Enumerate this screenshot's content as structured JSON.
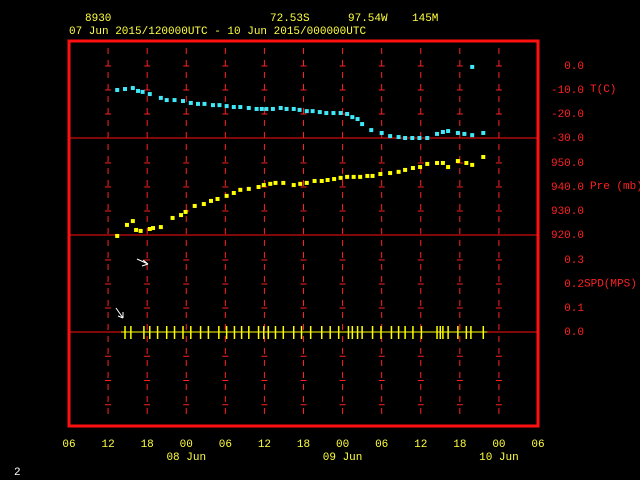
{
  "header": {
    "station": "8930",
    "lat": "72.53S",
    "lon": "97.54W",
    "elev": "145M",
    "period": "07 Jun 2015/120000UTC - 10 Jun 2015/000000UTC",
    "page": "2"
  },
  "x_axis": {
    "xlim": [
      6,
      78
    ],
    "xticks": [
      {
        "value": 6,
        "label": "06"
      },
      {
        "value": 12,
        "label": "12"
      },
      {
        "value": 18,
        "label": "18"
      },
      {
        "value": 24,
        "label": "00"
      },
      {
        "value": 30,
        "label": "06"
      },
      {
        "value": 36,
        "label": "12"
      },
      {
        "value": 42,
        "label": "18"
      },
      {
        "value": 48,
        "label": "00"
      },
      {
        "value": 54,
        "label": "06"
      },
      {
        "value": 60,
        "label": "12"
      },
      {
        "value": 66,
        "label": "18"
      },
      {
        "value": 72,
        "label": "00"
      },
      {
        "value": 78,
        "label": "06"
      }
    ],
    "dates": [
      {
        "value": 24,
        "label": "08 Jun"
      },
      {
        "value": 48,
        "label": "09 Jun"
      },
      {
        "value": 72,
        "label": "10 Jun"
      }
    ]
  },
  "chart_data": [
    {
      "type": "scatter",
      "label": "T(C)",
      "color": "#40e8f8",
      "x": [
        13.4,
        14.6,
        15.8,
        16.6,
        17.3,
        18.4,
        20.1,
        21.0,
        22.2,
        23.5,
        24.7,
        25.8,
        26.8,
        28.1,
        29.1,
        30.2,
        31.3,
        32.3,
        33.6,
        34.8,
        35.6,
        36.3,
        37.3,
        38.5,
        39.4,
        40.5,
        41.4,
        42.5,
        43.4,
        44.5,
        45.5,
        46.6,
        47.7,
        48.7,
        49.5,
        50.3,
        51.0,
        52.4,
        54.0,
        55.3,
        56.6,
        57.6,
        58.7,
        59.8,
        61.0,
        62.5,
        63.4,
        64.2,
        65.7,
        66.7,
        67.9,
        69.6,
        67.9
      ],
      "values": [
        -10.0,
        -9.6,
        -9.2,
        -10.4,
        -10.8,
        -11.7,
        -13.3,
        -14.2,
        -14.2,
        -14.6,
        -15.4,
        -15.8,
        -15.8,
        -16.3,
        -16.3,
        -16.7,
        -17.1,
        -17.1,
        -17.5,
        -17.9,
        -17.9,
        -17.9,
        -17.9,
        -17.5,
        -17.9,
        -17.9,
        -18.3,
        -18.8,
        -18.8,
        -19.2,
        -19.6,
        -19.6,
        -19.6,
        -20.0,
        -21.3,
        -22.1,
        -24.2,
        -26.7,
        -27.9,
        -29.2,
        -29.6,
        -30.0,
        -30.0,
        -30.0,
        -30.0,
        -28.3,
        -27.5,
        -27.1,
        -27.9,
        -28.3,
        -28.8,
        -27.9,
        -0.4
      ],
      "ylim": [
        -30,
        10.4
      ],
      "yticks": [
        {
          "value": 0,
          "label": "0.0"
        },
        {
          "value": -10,
          "label": "-10.0"
        },
        {
          "value": -20,
          "label": "-20.0"
        },
        {
          "value": -30,
          "label": "-30.0"
        }
      ]
    },
    {
      "type": "scatter",
      "label": "Pre (mb)",
      "color": "#ffff00",
      "x": [
        13.4,
        14.9,
        15.8,
        16.3,
        17.0,
        18.4,
        18.9,
        20.1,
        21.9,
        23.2,
        23.9,
        25.3,
        26.7,
        27.8,
        28.8,
        30.2,
        31.3,
        32.3,
        33.6,
        35.1,
        35.9,
        36.9,
        37.7,
        38.9,
        40.5,
        41.5,
        42.5,
        43.7,
        44.8,
        45.7,
        46.7,
        47.7,
        48.7,
        49.7,
        50.7,
        51.8,
        52.6,
        53.8,
        55.3,
        56.6,
        57.6,
        58.8,
        59.9,
        61.0,
        62.5,
        63.4,
        64.2,
        65.7,
        67.0,
        67.9,
        69.6
      ],
      "values": [
        919.6,
        924.2,
        925.8,
        922.1,
        921.7,
        922.5,
        922.9,
        923.3,
        927.1,
        928.3,
        929.6,
        932.1,
        932.9,
        934.2,
        935.0,
        936.3,
        937.5,
        938.8,
        939.2,
        940.0,
        940.8,
        941.3,
        941.7,
        941.7,
        940.8,
        941.3,
        941.7,
        942.5,
        942.5,
        942.9,
        943.3,
        943.8,
        944.2,
        944.2,
        944.2,
        944.6,
        944.6,
        945.4,
        945.8,
        946.3,
        947.1,
        947.9,
        948.3,
        949.6,
        950.0,
        950.0,
        948.3,
        950.8,
        950.0,
        949.2,
        952.5
      ],
      "ylim": [
        920,
        960.4
      ],
      "yticks": [
        {
          "value": 950,
          "label": "950.0"
        },
        {
          "value": 940,
          "label": "940.0"
        },
        {
          "value": 930,
          "label": "930.0"
        },
        {
          "value": 920,
          "label": "920.0"
        }
      ]
    },
    {
      "type": "wind",
      "label": "SPD(MPS)",
      "color": "#ffff00",
      "x": [
        14.6,
        15.5,
        17.5,
        18.4,
        19.6,
        21.0,
        22.2,
        23.5,
        24.7,
        26.2,
        27.4,
        29.0,
        30.2,
        31.4,
        32.5,
        33.6,
        35.1,
        35.9,
        36.6,
        37.7,
        38.9,
        40.5,
        41.7,
        43.1,
        44.8,
        46.1,
        47.4,
        48.9,
        49.5,
        50.3,
        51.0,
        52.6,
        53.9,
        55.5,
        56.6,
        57.6,
        58.8,
        60.1,
        62.5,
        63.0,
        63.4,
        64.2,
        65.7,
        67.0,
        67.7,
        69.6
      ],
      "values": [
        0,
        0,
        0,
        0,
        0,
        0,
        0,
        0,
        0,
        0,
        0,
        0,
        0,
        0,
        0,
        0,
        0,
        0,
        0,
        0,
        0,
        0,
        0,
        0,
        0,
        0,
        0,
        0,
        0,
        0,
        0,
        0,
        0,
        0,
        0,
        0,
        0,
        0,
        0,
        0,
        0,
        0,
        0,
        0,
        0,
        0
      ],
      "ylim": [
        0,
        0.404
      ],
      "yticks": [
        {
          "value": 0.3,
          "label": "0.3"
        },
        {
          "value": 0.2,
          "label": "0.2"
        },
        {
          "value": 0.1,
          "label": "0.1"
        },
        {
          "value": 0,
          "label": "0.0"
        }
      ]
    }
  ]
}
